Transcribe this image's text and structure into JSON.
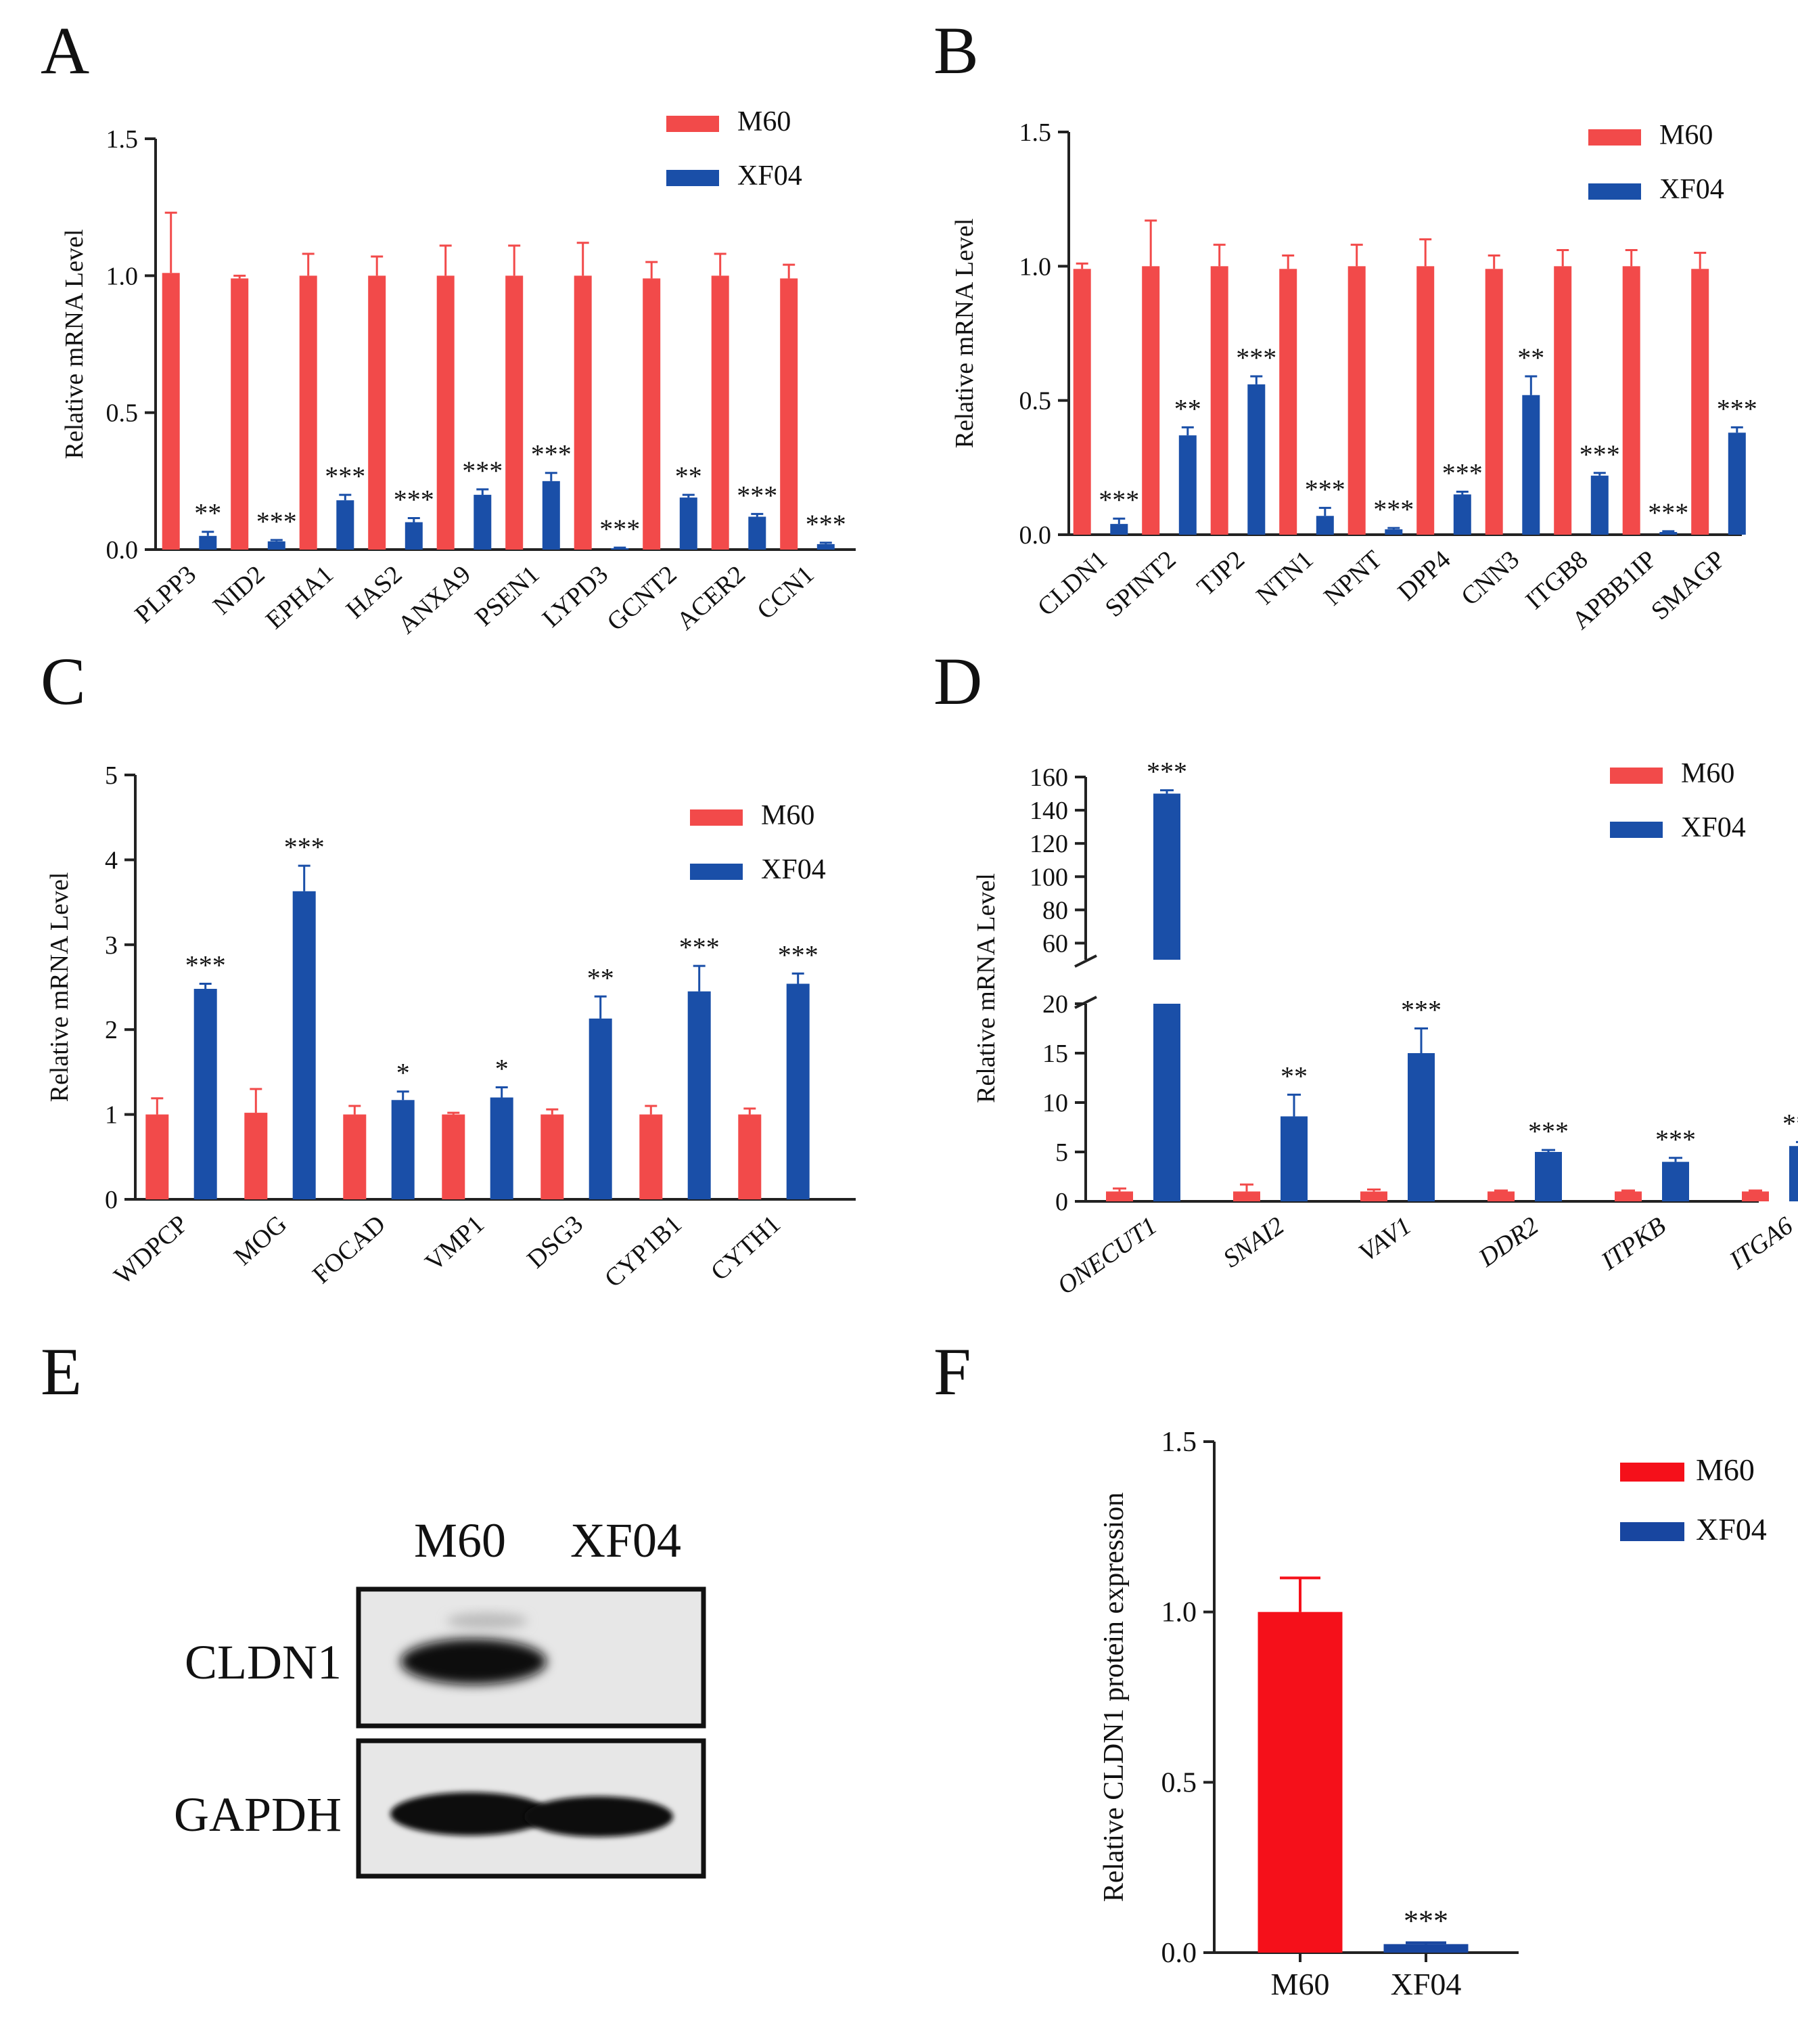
{
  "colors": {
    "m60": "#f24a4a",
    "xf04": "#1a4fa8",
    "axis": "#222222",
    "m60_f": "#f5101a",
    "xf04_f": "#1846a0"
  },
  "panels": {
    "A": {
      "letter": "A"
    },
    "B": {
      "letter": "B"
    },
    "C": {
      "letter": "C"
    },
    "D": {
      "letter": "D"
    },
    "E": {
      "letter": "E",
      "lane_labels": [
        "M60",
        "XF04"
      ],
      "row_labels": [
        "CLDN1",
        "GAPDH"
      ]
    },
    "F": {
      "letter": "F"
    }
  },
  "chart_data": [
    {
      "id": "A",
      "type": "bar",
      "ylabel": "Relative mRNA Level",
      "ylim": [
        0,
        1.5
      ],
      "yticks": [
        "0.0",
        "0.5",
        "1.0",
        "1.5"
      ],
      "ytick_values": [
        0,
        0.5,
        1.0,
        1.5
      ],
      "legend": [
        "M60",
        "XF04"
      ],
      "legend_position": "top-right",
      "categories": [
        "PLPP3",
        "NID2",
        "EPHA1",
        "HAS2",
        "ANXA9",
        "PSEN1",
        "LYPD3",
        "GCNT2",
        "ACER2",
        "CCN1"
      ],
      "series": [
        {
          "name": "M60",
          "values": [
            1.01,
            0.99,
            1.0,
            1.0,
            1.0,
            1.0,
            1.0,
            0.99,
            1.0,
            0.99
          ],
          "errors": [
            0.22,
            0.01,
            0.08,
            0.07,
            0.11,
            0.11,
            0.12,
            0.06,
            0.08,
            0.05
          ]
        },
        {
          "name": "XF04",
          "values": [
            0.05,
            0.03,
            0.18,
            0.1,
            0.2,
            0.25,
            0.005,
            0.19,
            0.12,
            0.02
          ],
          "errors": [
            0.015,
            0.005,
            0.02,
            0.015,
            0.02,
            0.03,
            0.002,
            0.01,
            0.01,
            0.005
          ]
        }
      ],
      "significance": [
        "**",
        "***",
        "***",
        "***",
        "***",
        "***",
        "***",
        "**",
        "***",
        "***"
      ]
    },
    {
      "id": "B",
      "type": "bar",
      "ylabel": "Relative mRNA Level",
      "ylim": [
        0,
        1.5
      ],
      "yticks": [
        "0.0",
        "0.5",
        "1.0",
        "1.5"
      ],
      "ytick_values": [
        0,
        0.5,
        1.0,
        1.5
      ],
      "legend": [
        "M60",
        "XF04"
      ],
      "legend_position": "top-right",
      "categories": [
        "CLDN1",
        "SPINT2",
        "TJP2",
        "NTN1",
        "NPNT",
        "DPP4",
        "CNN3",
        "ITGB8",
        "APBB1IP",
        "SMAGP"
      ],
      "series": [
        {
          "name": "M60",
          "values": [
            0.99,
            1.0,
            1.0,
            0.99,
            1.0,
            1.0,
            0.99,
            1.0,
            1.0,
            0.99
          ],
          "errors": [
            0.02,
            0.17,
            0.08,
            0.05,
            0.08,
            0.1,
            0.05,
            0.06,
            0.06,
            0.06
          ]
        },
        {
          "name": "XF04",
          "values": [
            0.04,
            0.37,
            0.56,
            0.07,
            0.02,
            0.15,
            0.52,
            0.22,
            0.01,
            0.38
          ],
          "errors": [
            0.02,
            0.03,
            0.03,
            0.03,
            0.005,
            0.01,
            0.07,
            0.01,
            0.003,
            0.02
          ]
        }
      ],
      "significance": [
        "***",
        "**",
        "***",
        "***",
        "***",
        "***",
        "**",
        "***",
        "***",
        "***"
      ]
    },
    {
      "id": "C",
      "type": "bar",
      "ylabel": "Relative mRNA Level",
      "ylim": [
        0,
        5
      ],
      "yticks": [
        "0",
        "1",
        "2",
        "3",
        "4",
        "5"
      ],
      "ytick_values": [
        0,
        1,
        2,
        3,
        4,
        5
      ],
      "legend": [
        "M60",
        "XF04"
      ],
      "legend_position": "top-right",
      "categories": [
        "WDPCP",
        "MOG",
        "FOCAD",
        "VMP1",
        "DSG3",
        "CYP1B1",
        "CYTH1"
      ],
      "series": [
        {
          "name": "M60",
          "values": [
            1.0,
            1.02,
            1.0,
            1.0,
            1.0,
            1.0,
            1.0
          ],
          "errors": [
            0.19,
            0.28,
            0.1,
            0.02,
            0.06,
            0.1,
            0.07
          ]
        },
        {
          "name": "XF04",
          "values": [
            2.48,
            3.63,
            1.17,
            1.2,
            2.13,
            2.45,
            2.54
          ],
          "errors": [
            0.06,
            0.3,
            0.1,
            0.12,
            0.26,
            0.3,
            0.12
          ]
        }
      ],
      "significance": [
        "***",
        "***",
        "*",
        "*",
        "**",
        "***",
        "***"
      ]
    },
    {
      "id": "D",
      "type": "bar",
      "ylabel": "Relative mRNA Level",
      "axis_break": [
        20,
        50
      ],
      "yticks_lower": [
        "0",
        "5",
        "10",
        "15",
        "20"
      ],
      "ytick_values_lower": [
        0,
        5,
        10,
        15,
        20
      ],
      "yticks_upper": [
        "60",
        "80",
        "100",
        "120",
        "140",
        "160"
      ],
      "ytick_values_upper": [
        60,
        80,
        100,
        120,
        140,
        160
      ],
      "legend": [
        "M60",
        "XF04"
      ],
      "legend_position": "top-right",
      "categories": [
        "ONECUT1",
        "SNAI2",
        "VAV1",
        "DDR2",
        "ITPKB",
        "ITGA6"
      ],
      "series": [
        {
          "name": "M60",
          "values": [
            1.0,
            1.0,
            1.0,
            1.0,
            1.0,
            1.0
          ],
          "errors": [
            0.3,
            0.7,
            0.2,
            0.1,
            0.1,
            0.1
          ]
        },
        {
          "name": "XF04",
          "values": [
            150.0,
            8.6,
            15.0,
            5.0,
            4.0,
            5.6
          ],
          "errors": [
            2.0,
            2.2,
            2.5,
            0.2,
            0.4,
            0.4
          ]
        }
      ],
      "significance": [
        "***",
        "**",
        "***",
        "***",
        "***",
        "***"
      ]
    },
    {
      "id": "F",
      "type": "bar",
      "ylabel": "Relative CLDN1 protein expression",
      "ylim": [
        0,
        1.5
      ],
      "yticks": [
        "0.0",
        "0.5",
        "1.0",
        "1.5"
      ],
      "ytick_values": [
        0,
        0.5,
        1.0,
        1.5
      ],
      "legend": [
        "M60",
        "XF04"
      ],
      "legend_position": "top-right",
      "categories": [
        "M60",
        "XF04"
      ],
      "values": [
        1.0,
        0.025
      ],
      "errors": [
        0.1,
        0.004
      ],
      "significance": [
        "",
        "***"
      ]
    }
  ]
}
